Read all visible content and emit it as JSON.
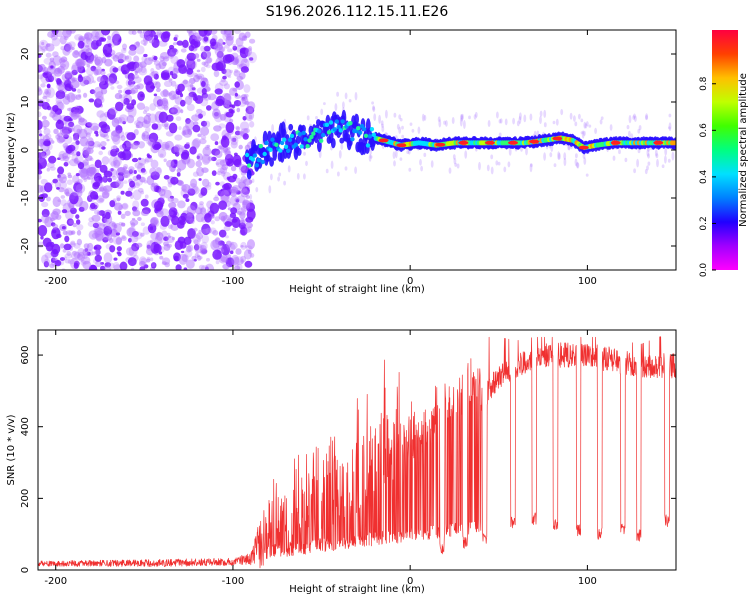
{
  "title": "S196.2026.112.15.11.E26",
  "chart_data": [
    {
      "type": "heatmap",
      "title": "S196.2026.112.15.11.E26",
      "xlabel": "Height of straight line (km)",
      "ylabel": "Frequency (Hz)",
      "xlim": [
        -210,
        150
      ],
      "ylim": [
        -25,
        25
      ],
      "xticks": [
        -200,
        -100,
        0,
        100
      ],
      "yticks": [
        -20,
        -10,
        0,
        10,
        20
      ],
      "colorbar": {
        "label": "Normalized spectral amplitude",
        "range": [
          0,
          1
        ],
        "ticks": [
          "0.0",
          "0.2",
          "0.4",
          "0.6",
          "0.8"
        ]
      },
      "signal_track": {
        "x": [
          -92,
          -85,
          -75,
          -65,
          -55,
          -45,
          -35,
          -25,
          -15,
          -5,
          5,
          15,
          25,
          35,
          45,
          55,
          65,
          75,
          85,
          92,
          98,
          105,
          115,
          125,
          135,
          145,
          150
        ],
        "freq": [
          -3,
          -1,
          1,
          2,
          3,
          4,
          4,
          3,
          2,
          1,
          1.5,
          1,
          1.5,
          1.5,
          1.5,
          1.5,
          1.5,
          2,
          2.5,
          2,
          0.5,
          1,
          1.5,
          1.5,
          1.5,
          1.5,
          1.5
        ]
      }
    },
    {
      "type": "line",
      "xlabel": "Height of straight line (km)",
      "ylabel": "SNR (10 * v/v)",
      "xlim": [
        -210,
        150
      ],
      "ylim": [
        0,
        670
      ],
      "xticks": [
        -200,
        -100,
        0,
        100
      ],
      "yticks": [
        0,
        200,
        400,
        600
      ],
      "color": "#f03030",
      "envelope": {
        "x": [
          -210,
          -150,
          -100,
          -90,
          -85,
          -80,
          -70,
          -60,
          -50,
          -40,
          -30,
          -20,
          -10,
          0,
          10,
          20,
          30,
          40,
          50,
          60,
          70,
          80,
          90,
          100,
          110,
          120,
          130,
          140,
          150
        ],
        "base": [
          15,
          15,
          18,
          25,
          40,
          80,
          90,
          100,
          110,
          130,
          160,
          200,
          250,
          300,
          340,
          380,
          420,
          470,
          540,
          570,
          590,
          600,
          600,
          600,
          590,
          580,
          570,
          570,
          570
        ],
        "peak": [
          30,
          35,
          40,
          60,
          180,
          260,
          300,
          350,
          400,
          440,
          500,
          580,
          600,
          480,
          500,
          560,
          600,
          650,
          650,
          640,
          650,
          650,
          650,
          650,
          650,
          640,
          630,
          650,
          660
        ]
      },
      "dropouts": [
        {
          "x": 18,
          "value": 40
        },
        {
          "x": 31,
          "value": 60
        },
        {
          "x": 42,
          "value": 70
        },
        {
          "x": 58,
          "value": 115
        },
        {
          "x": 70,
          "value": 125
        },
        {
          "x": 82,
          "value": 110
        },
        {
          "x": 95,
          "value": 95
        },
        {
          "x": 107,
          "value": 85
        },
        {
          "x": 120,
          "value": 95
        },
        {
          "x": 129,
          "value": 80
        },
        {
          "x": 145,
          "value": 120
        }
      ]
    }
  ]
}
